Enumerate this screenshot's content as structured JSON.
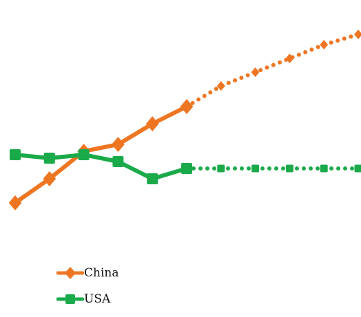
{
  "chart_data": {
    "type": "line",
    "x": [
      1,
      2,
      3,
      4,
      5,
      6,
      7,
      8,
      9,
      10,
      11
    ],
    "forecast_start_index": 5,
    "ylim": [
      0,
      10
    ],
    "grid": false,
    "legend_position": "bottom-left",
    "series": [
      {
        "name": "China",
        "color": "#EE7623",
        "marker": "diamond-icon",
        "values": [
          4.2,
          4.9,
          5.7,
          5.9,
          6.5,
          7.0,
          7.6,
          8.0,
          8.4,
          8.8,
          9.1
        ]
      },
      {
        "name": "USA",
        "color": "#1AAA4A",
        "marker": "square-icon",
        "values": [
          5.6,
          5.5,
          5.6,
          5.4,
          4.9,
          5.2,
          5.2,
          5.2,
          5.2,
          5.2,
          5.2
        ]
      }
    ]
  }
}
